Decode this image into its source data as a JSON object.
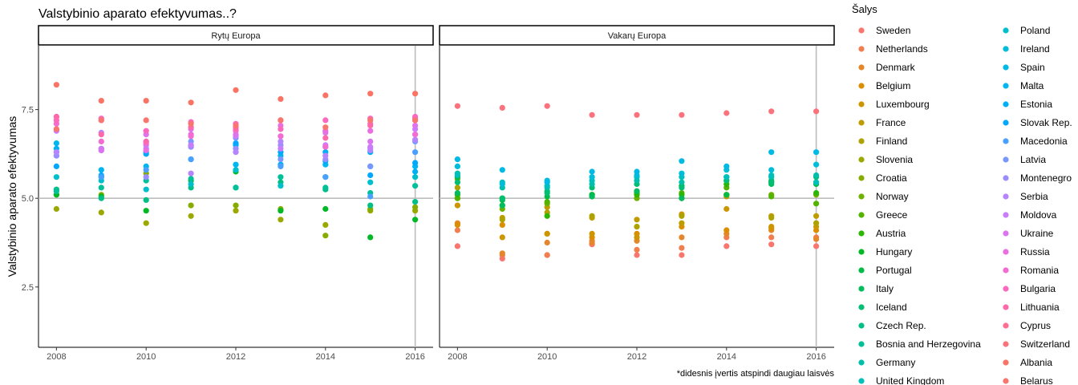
{
  "chart_data": {
    "type": "scatter",
    "title": "Valstybinio aparato efektyvumas..?",
    "ylabel": "Valstybinio aparato efektyvumas",
    "xlabel": "",
    "caption": "*didesnis įvertis atspindi daugiau laisvės",
    "ylim": [
      0.8,
      9.3
    ],
    "xlim": [
      2007.6,
      2016.4
    ],
    "x_ticks": [
      2008,
      2010,
      2012,
      2014,
      2016
    ],
    "y_ticks": [
      2.5,
      5.0,
      7.5
    ],
    "y_tick_labels": [
      "2.5",
      "5.0",
      "7.5"
    ],
    "reference_line_y": 5.0,
    "reference_line_x": 2016,
    "grid": false,
    "legend_title": "Šalys",
    "legend_position": "right",
    "countries": [
      {
        "name": "Sweden",
        "color": "#F8766D"
      },
      {
        "name": "Netherlands",
        "color": "#F07E4F"
      },
      {
        "name": "Denmark",
        "color": "#E6862A"
      },
      {
        "name": "Belgium",
        "color": "#DB8E00"
      },
      {
        "name": "Luxembourg",
        "color": "#CD9600"
      },
      {
        "name": "France",
        "color": "#BE9C00"
      },
      {
        "name": "Finland",
        "color": "#ADA200"
      },
      {
        "name": "Slovenia",
        "color": "#9AA800"
      },
      {
        "name": "Croatia",
        "color": "#86AC00"
      },
      {
        "name": "Norway",
        "color": "#6EB100"
      },
      {
        "name": "Greece",
        "color": "#53B400"
      },
      {
        "name": "Austria",
        "color": "#2BB600"
      },
      {
        "name": "Hungary",
        "color": "#00B925"
      },
      {
        "name": "Portugal",
        "color": "#00BB45"
      },
      {
        "name": "Italy",
        "color": "#00BC5D"
      },
      {
        "name": "Iceland",
        "color": "#00BE72"
      },
      {
        "name": "Czech Rep.",
        "color": "#00BF86"
      },
      {
        "name": "Bosnia and Herzegovina",
        "color": "#00C099"
      },
      {
        "name": "Germany",
        "color": "#00C0AB"
      },
      {
        "name": "United Kingdom",
        "color": "#00C0BC"
      },
      {
        "name": "Poland",
        "color": "#00BFCC"
      },
      {
        "name": "Ireland",
        "color": "#00BDDA"
      },
      {
        "name": "Spain",
        "color": "#00BAE6"
      },
      {
        "name": "Malta",
        "color": "#00B6F1"
      },
      {
        "name": "Estonia",
        "color": "#00B0F6"
      },
      {
        "name": "Slovak Rep.",
        "color": "#00A9FF"
      },
      {
        "name": "Macedonia",
        "color": "#4AA0FF"
      },
      {
        "name": "Latvia",
        "color": "#7997FF"
      },
      {
        "name": "Montenegro",
        "color": "#9A8EFF"
      },
      {
        "name": "Serbia",
        "color": "#B585FF"
      },
      {
        "name": "Moldova",
        "color": "#CB7CFA"
      },
      {
        "name": "Ukraine",
        "color": "#DC74EF"
      },
      {
        "name": "Russia",
        "color": "#EA6EE1"
      },
      {
        "name": "Romania",
        "color": "#F46BD1"
      },
      {
        "name": "Bulgaria",
        "color": "#FB69BE"
      },
      {
        "name": "Lithuania",
        "color": "#FE6AA9"
      },
      {
        "name": "Cyprus",
        "color": "#FE6E92"
      },
      {
        "name": "Switzerland",
        "color": "#FC727C"
      },
      {
        "name": "Albania",
        "color": "#FA7365"
      },
      {
        "name": "Belarus",
        "color": "#F8766D"
      }
    ],
    "panels": [
      {
        "label": "Rytų Europa",
        "series": [
          {
            "country": "Slovenia",
            "values": [
              4.7,
              4.6,
              4.3,
              4.5,
              4.65,
              4.4,
              4.25,
              4.65,
              4.65
            ]
          },
          {
            "country": "Croatia",
            "values": [
              5.1,
              5.1,
              5.7,
              4.8,
              4.8,
              4.7,
              3.95,
              4.7,
              4.75
            ]
          },
          {
            "country": "Hungary",
            "values": [
              5.1,
              5.05,
              4.65,
              5.5,
              5.75,
              4.65,
              4.7,
              3.9,
              4.4
            ]
          },
          {
            "country": "Czech Rep.",
            "values": [
              5.25,
              5.0,
              4.95,
              5.3,
              5.3,
              5.45,
              5.25,
              4.8,
              4.9
            ]
          },
          {
            "country": "Bosnia and Herzegovina",
            "values": [
              5.2,
              5.3,
              5.5,
              5.55,
              5.3,
              5.6,
              5.3,
              5.15,
              5.35
            ]
          },
          {
            "country": "Poland",
            "values": [
              5.6,
              5.5,
              5.25,
              5.4,
              5.8,
              5.35,
              5.6,
              5.45,
              5.6
            ]
          },
          {
            "country": "Malta",
            "values": [
              6.55,
              5.8,
              5.9,
              6.5,
              5.95,
              6.2,
              5.95,
              5.9,
              5.9
            ]
          },
          {
            "country": "Estonia",
            "values": [
              6.4,
              5.6,
              6.3,
              6.45,
              6.5,
              5.95,
              6.3,
              6.3,
              5.75
            ]
          },
          {
            "country": "Slovak Rep.",
            "values": [
              5.9,
              5.65,
              6.25,
              6.1,
              6.55,
              6.3,
              6.05,
              5.65,
              6.0
            ]
          },
          {
            "country": "Macedonia",
            "values": [
              6.2,
              5.6,
              5.8,
              6.1,
              6.4,
              5.9,
              5.6,
              5.05,
              6.3
            ]
          },
          {
            "country": "Latvia",
            "values": [
              6.3,
              6.4,
              6.6,
              6.6,
              6.7,
              6.1,
              6.45,
              5.9,
              6.6
            ]
          },
          {
            "country": "Montenegro",
            "values": [
              6.2,
              6.35,
              5.6,
              6.45,
              6.4,
              6.5,
              6.1,
              6.4,
              6.8
            ]
          },
          {
            "country": "Serbia",
            "values": [
              6.3,
              6.85,
              6.4,
              5.7,
              6.3,
              6.6,
              6.2,
              6.35,
              6.65
            ]
          },
          {
            "country": "Moldova",
            "values": [
              6.9,
              6.4,
              6.5,
              6.5,
              6.75,
              6.4,
              6.5,
              6.45,
              6.95
            ]
          },
          {
            "country": "Ukraine",
            "values": [
              7.3,
              6.35,
              6.8,
              6.95,
              6.8,
              6.75,
              6.85,
              6.6,
              7.05
            ]
          },
          {
            "country": "Russia",
            "values": [
              6.95,
              7.2,
              6.35,
              6.8,
              6.9,
              7.05,
              6.9,
              6.9,
              7.25
            ]
          },
          {
            "country": "Romania",
            "values": [
              7.1,
              6.6,
              6.55,
              6.75,
              7.0,
              6.75,
              6.45,
              7.1,
              6.8
            ]
          },
          {
            "country": "Bulgaria",
            "values": [
              7.2,
              7.25,
              6.9,
              7.15,
              7.1,
              6.95,
              7.2,
              7.25,
              7.3
            ]
          },
          {
            "country": "Lithuania",
            "values": [
              7.3,
              6.8,
              6.6,
              7.0,
              6.95,
              7.2,
              6.7,
              7.05,
              7.2
            ]
          },
          {
            "country": "Albania",
            "values": [
              8.2,
              7.75,
              7.75,
              7.7,
              8.05,
              7.8,
              7.9,
              7.95,
              7.95
            ]
          },
          {
            "country": "Belarus",
            "values": [
              6.95,
              7.2,
              7.2,
              7.1,
              7.05,
              7.2,
              7.0,
              7.2,
              7.2
            ]
          }
        ]
      },
      {
        "label": "Vakarų Europa",
        "series": [
          {
            "country": "Sweden",
            "values": [
              3.65,
              3.3,
              3.4,
              3.7,
              3.4,
              3.4,
              3.65,
              3.7,
              3.65
            ]
          },
          {
            "country": "Netherlands",
            "values": [
              4.1,
              3.4,
              3.4,
              3.8,
              3.55,
              3.6,
              3.9,
              3.9,
              3.9
            ]
          },
          {
            "country": "Denmark",
            "values": [
              4.3,
              3.45,
              3.75,
              3.75,
              3.8,
              3.9,
              4.0,
              4.1,
              3.85
            ]
          },
          {
            "country": "Belgium",
            "values": [
              4.25,
              4.25,
              4.0,
              3.9,
              4.0,
              4.2,
              4.1,
              4.15,
              4.1
            ]
          },
          {
            "country": "Luxembourg",
            "values": [
              4.8,
              3.9,
              4.0,
              4.0,
              3.9,
              4.55,
              4.7,
              4.2,
              4.2
            ]
          },
          {
            "country": "France",
            "values": [
              5.0,
              4.45,
              4.75,
              4.45,
              4.4,
              4.3,
              5.05,
              4.5,
              4.5
            ]
          },
          {
            "country": "Finland",
            "values": [
              5.3,
              4.4,
              4.6,
              4.5,
              4.2,
              4.5,
              5.1,
              4.45,
              4.3
            ]
          },
          {
            "country": "Norway",
            "values": [
              5.55,
              4.7,
              4.85,
              5.1,
              5.0,
              5.0,
              5.1,
              5.1,
              5.1
            ]
          },
          {
            "country": "Greece",
            "values": [
              5.0,
              5.0,
              4.9,
              5.05,
              5.15,
              5.15,
              5.3,
              5.05,
              4.85
            ]
          },
          {
            "country": "Austria",
            "values": [
              5.1,
              4.8,
              4.5,
              5.1,
              5.1,
              5.1,
              5.4,
              5.45,
              5.15
            ]
          },
          {
            "country": "Portugal",
            "values": [
              5.6,
              4.95,
              5.05,
              5.1,
              5.2,
              5.35,
              5.1,
              5.5,
              5.4
            ]
          },
          {
            "country": "Italy",
            "values": [
              5.15,
              4.8,
              5.2,
              5.05,
              5.2,
              5.0,
              5.5,
              5.4,
              5.45
            ]
          },
          {
            "country": "Iceland",
            "values": [
              5.45,
              5.0,
              5.15,
              5.3,
              5.4,
              5.3,
              5.5,
              5.45,
              5.6
            ]
          },
          {
            "country": "Germany",
            "values": [
              5.7,
              5.3,
              5.3,
              5.4,
              5.5,
              5.45,
              5.6,
              5.6,
              5.65
            ]
          },
          {
            "country": "United Kingdom",
            "values": [
              5.65,
              5.45,
              5.35,
              5.5,
              5.6,
              5.6,
              5.6,
              5.65,
              5.45
            ]
          },
          {
            "country": "Ireland",
            "values": [
              5.9,
              5.4,
              5.5,
              5.6,
              5.65,
              5.7,
              5.8,
              5.8,
              5.95
            ]
          },
          {
            "country": "Spain",
            "values": [
              6.1,
              5.8,
              5.45,
              5.75,
              5.75,
              6.05,
              5.9,
              6.3,
              6.3
            ]
          },
          {
            "country": "Switzerland",
            "values": [
              7.6,
              7.55,
              7.6,
              7.35,
              7.35,
              7.35,
              7.4,
              7.45,
              7.45
            ]
          }
        ]
      }
    ]
  }
}
